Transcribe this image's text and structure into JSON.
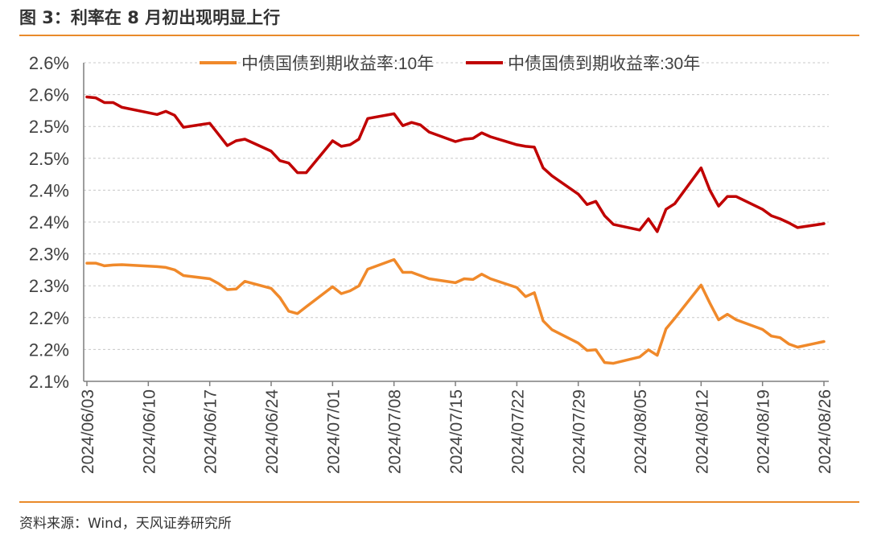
{
  "figure": {
    "title": "图 3：利率在 8 月初出现明显上行",
    "source": "资料来源：Wind，天风证券研究所"
  },
  "chart_data": {
    "type": "line",
    "title": "",
    "xlabel": "",
    "ylabel": "",
    "x_ticks": [
      "2024/06/03",
      "2024/06/10",
      "2024/06/17",
      "2024/06/24",
      "2024/07/01",
      "2024/07/08",
      "2024/07/15",
      "2024/07/22",
      "2024/07/29",
      "2024/08/05",
      "2024/08/12",
      "2024/08/19",
      "2024/08/26"
    ],
    "y_tick_labels": [
      "2.1%",
      "2.2%",
      "2.2%",
      "2.3%",
      "2.3%",
      "2.4%",
      "2.4%",
      "2.5%",
      "2.5%",
      "2.6%",
      "2.6%"
    ],
    "ylim": [
      2.1,
      2.6
    ],
    "y_tick_step": 0.05,
    "grid": "horizontal-dashed",
    "legend_position": "top",
    "series": [
      {
        "name": "中债国债到期收益率:10年",
        "color": "#f0892a",
        "points": [
          [
            "2024/06/03",
            2.2855
          ],
          [
            "2024/06/04",
            2.2855
          ],
          [
            "2024/06/05",
            2.2813
          ],
          [
            "2024/06/06",
            2.2826
          ],
          [
            "2024/06/07",
            2.2831
          ],
          [
            "2024/06/11",
            2.2801
          ],
          [
            "2024/06/12",
            2.2788
          ],
          [
            "2024/06/13",
            2.275
          ],
          [
            "2024/06/14",
            2.266
          ],
          [
            "2024/06/17",
            2.261
          ],
          [
            "2024/06/18",
            2.2535
          ],
          [
            "2024/06/19",
            2.244
          ],
          [
            "2024/06/20",
            2.2448
          ],
          [
            "2024/06/21",
            2.257
          ],
          [
            "2024/06/24",
            2.246
          ],
          [
            "2024/06/25",
            2.2313
          ],
          [
            "2024/06/26",
            2.2101
          ],
          [
            "2024/06/27",
            2.2063
          ],
          [
            "2024/06/28",
            2.217
          ],
          [
            "2024/07/01",
            2.2485
          ],
          [
            "2024/07/02",
            2.2376
          ],
          [
            "2024/07/03",
            2.242
          ],
          [
            "2024/07/04",
            2.2498
          ],
          [
            "2024/07/05",
            2.276
          ],
          [
            "2024/07/08",
            2.2912
          ],
          [
            "2024/07/09",
            2.2711
          ],
          [
            "2024/07/10",
            2.2711
          ],
          [
            "2024/07/11",
            2.266
          ],
          [
            "2024/07/12",
            2.261
          ],
          [
            "2024/07/15",
            2.2548
          ],
          [
            "2024/07/16",
            2.261
          ],
          [
            "2024/07/17",
            2.2598
          ],
          [
            "2024/07/18",
            2.2682
          ],
          [
            "2024/07/19",
            2.261
          ],
          [
            "2024/07/22",
            2.2472
          ],
          [
            "2024/07/23",
            2.233
          ],
          [
            "2024/07/24",
            2.2392
          ],
          [
            "2024/07/25",
            2.195
          ],
          [
            "2024/07/26",
            2.181
          ],
          [
            "2024/07/29",
            2.1601
          ],
          [
            "2024/07/30",
            2.1485
          ],
          [
            "2024/07/31",
            2.1495
          ],
          [
            "2024/08/01",
            2.1296
          ],
          [
            "2024/08/02",
            2.1283
          ],
          [
            "2024/08/05",
            2.1383
          ],
          [
            "2024/08/06",
            2.1495
          ],
          [
            "2024/08/07",
            2.1408
          ],
          [
            "2024/08/08",
            2.1823
          ],
          [
            "2024/08/09",
            2.199
          ],
          [
            "2024/08/12",
            2.251
          ],
          [
            "2024/08/13",
            2.2228
          ],
          [
            "2024/08/14",
            2.1966
          ],
          [
            "2024/08/15",
            2.2053
          ],
          [
            "2024/08/16",
            2.1966
          ],
          [
            "2024/08/19",
            2.1815
          ],
          [
            "2024/08/20",
            2.1711
          ],
          [
            "2024/08/21",
            2.1686
          ],
          [
            "2024/08/22",
            2.1586
          ],
          [
            "2024/08/23",
            2.1537
          ],
          [
            "2024/08/26",
            2.1625
          ]
        ]
      },
      {
        "name": "中债国债到期收益率:30年",
        "color": "#c00000",
        "points": [
          [
            "2024/06/03",
            2.5463
          ],
          [
            "2024/06/04",
            2.545
          ],
          [
            "2024/06/05",
            2.5375
          ],
          [
            "2024/06/06",
            2.5375
          ],
          [
            "2024/06/07",
            2.53
          ],
          [
            "2024/06/11",
            2.5188
          ],
          [
            "2024/06/12",
            2.5238
          ],
          [
            "2024/06/13",
            2.5175
          ],
          [
            "2024/06/14",
            2.4988
          ],
          [
            "2024/06/17",
            2.505
          ],
          [
            "2024/06/18",
            2.4875
          ],
          [
            "2024/06/19",
            2.47
          ],
          [
            "2024/06/20",
            2.4775
          ],
          [
            "2024/06/21",
            2.48
          ],
          [
            "2024/06/24",
            2.4613
          ],
          [
            "2024/06/25",
            2.4463
          ],
          [
            "2024/06/26",
            2.4425
          ],
          [
            "2024/06/27",
            2.4275
          ],
          [
            "2024/06/28",
            2.4275
          ],
          [
            "2024/07/01",
            2.4775
          ],
          [
            "2024/07/02",
            2.4688
          ],
          [
            "2024/07/03",
            2.4713
          ],
          [
            "2024/07/04",
            2.48
          ],
          [
            "2024/07/05",
            2.5125
          ],
          [
            "2024/07/08",
            2.52
          ],
          [
            "2024/07/09",
            2.5013
          ],
          [
            "2024/07/10",
            2.5063
          ],
          [
            "2024/07/11",
            2.5025
          ],
          [
            "2024/07/12",
            2.4913
          ],
          [
            "2024/07/15",
            2.4763
          ],
          [
            "2024/07/16",
            2.48
          ],
          [
            "2024/07/17",
            2.4813
          ],
          [
            "2024/07/18",
            2.49
          ],
          [
            "2024/07/19",
            2.4838
          ],
          [
            "2024/07/22",
            2.4713
          ],
          [
            "2024/07/23",
            2.4688
          ],
          [
            "2024/07/24",
            2.4675
          ],
          [
            "2024/07/25",
            2.435
          ],
          [
            "2024/07/26",
            2.4225
          ],
          [
            "2024/07/29",
            2.3938
          ],
          [
            "2024/07/30",
            2.3775
          ],
          [
            "2024/07/31",
            2.3825
          ],
          [
            "2024/08/01",
            2.36
          ],
          [
            "2024/08/02",
            2.3463
          ],
          [
            "2024/08/05",
            2.3375
          ],
          [
            "2024/08/06",
            2.355
          ],
          [
            "2024/08/07",
            2.335
          ],
          [
            "2024/08/08",
            2.37
          ],
          [
            "2024/08/09",
            2.3788
          ],
          [
            "2024/08/12",
            2.435
          ],
          [
            "2024/08/13",
            2.4
          ],
          [
            "2024/08/14",
            2.375
          ],
          [
            "2024/08/15",
            2.39
          ],
          [
            "2024/08/16",
            2.39
          ],
          [
            "2024/08/19",
            2.37
          ],
          [
            "2024/08/20",
            2.36
          ],
          [
            "2024/08/21",
            2.355
          ],
          [
            "2024/08/22",
            2.3488
          ],
          [
            "2024/08/23",
            2.3413
          ],
          [
            "2024/08/26",
            2.3475
          ]
        ]
      }
    ]
  }
}
